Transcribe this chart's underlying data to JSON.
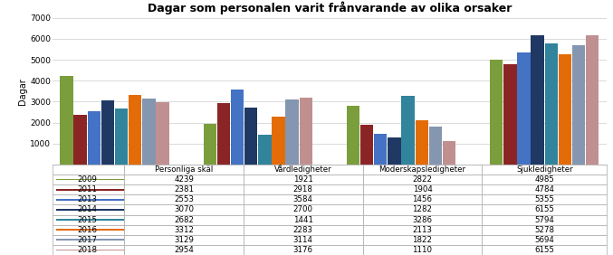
{
  "title": "Dagar som personalen varit frånvarande av olika orsaker",
  "ylabel": "Dagar",
  "categories": [
    "Personliga skäl",
    "Vårdledigheter",
    "Moderskapsledigheter",
    "Sjukledigheter"
  ],
  "years": [
    "2009",
    "2011",
    "2013",
    "2014",
    "2015",
    "2016",
    "2017",
    "2018"
  ],
  "colors": [
    "#7A9E3B",
    "#8B2525",
    "#4472C4",
    "#1F3864",
    "#31849B",
    "#E36C09",
    "#8496B0",
    "#C09090"
  ],
  "data": {
    "2009": [
      4239,
      1921,
      2822,
      4985
    ],
    "2011": [
      2381,
      2918,
      1904,
      4784
    ],
    "2013": [
      2553,
      3584,
      1456,
      5355
    ],
    "2014": [
      3070,
      2700,
      1282,
      6155
    ],
    "2015": [
      2682,
      1441,
      3286,
      5794
    ],
    "2016": [
      3312,
      2283,
      2113,
      5278
    ],
    "2017": [
      3129,
      3114,
      1822,
      5694
    ],
    "2018": [
      2954,
      3176,
      1110,
      6155
    ]
  },
  "ylim": [
    0,
    7000
  ],
  "yticks": [
    0,
    1000,
    2000,
    3000,
    4000,
    5000,
    6000,
    7000
  ],
  "table_rows": [
    [
      "2009",
      "4239",
      "1921",
      "2822",
      "4985"
    ],
    [
      "2011",
      "2381",
      "2918",
      "1904",
      "4784"
    ],
    [
      "2013",
      "2553",
      "3584",
      "1456",
      "5355"
    ],
    [
      "2014",
      "3070",
      "2700",
      "1282",
      "6155"
    ],
    [
      "2015",
      "2682",
      "1441",
      "3286",
      "5794"
    ],
    [
      "2016",
      "3312",
      "2283",
      "2113",
      "5278"
    ],
    [
      "2017",
      "3129",
      "3114",
      "1822",
      "5694"
    ],
    [
      "2018",
      "2954",
      "3176",
      "1110",
      "6155"
    ]
  ]
}
